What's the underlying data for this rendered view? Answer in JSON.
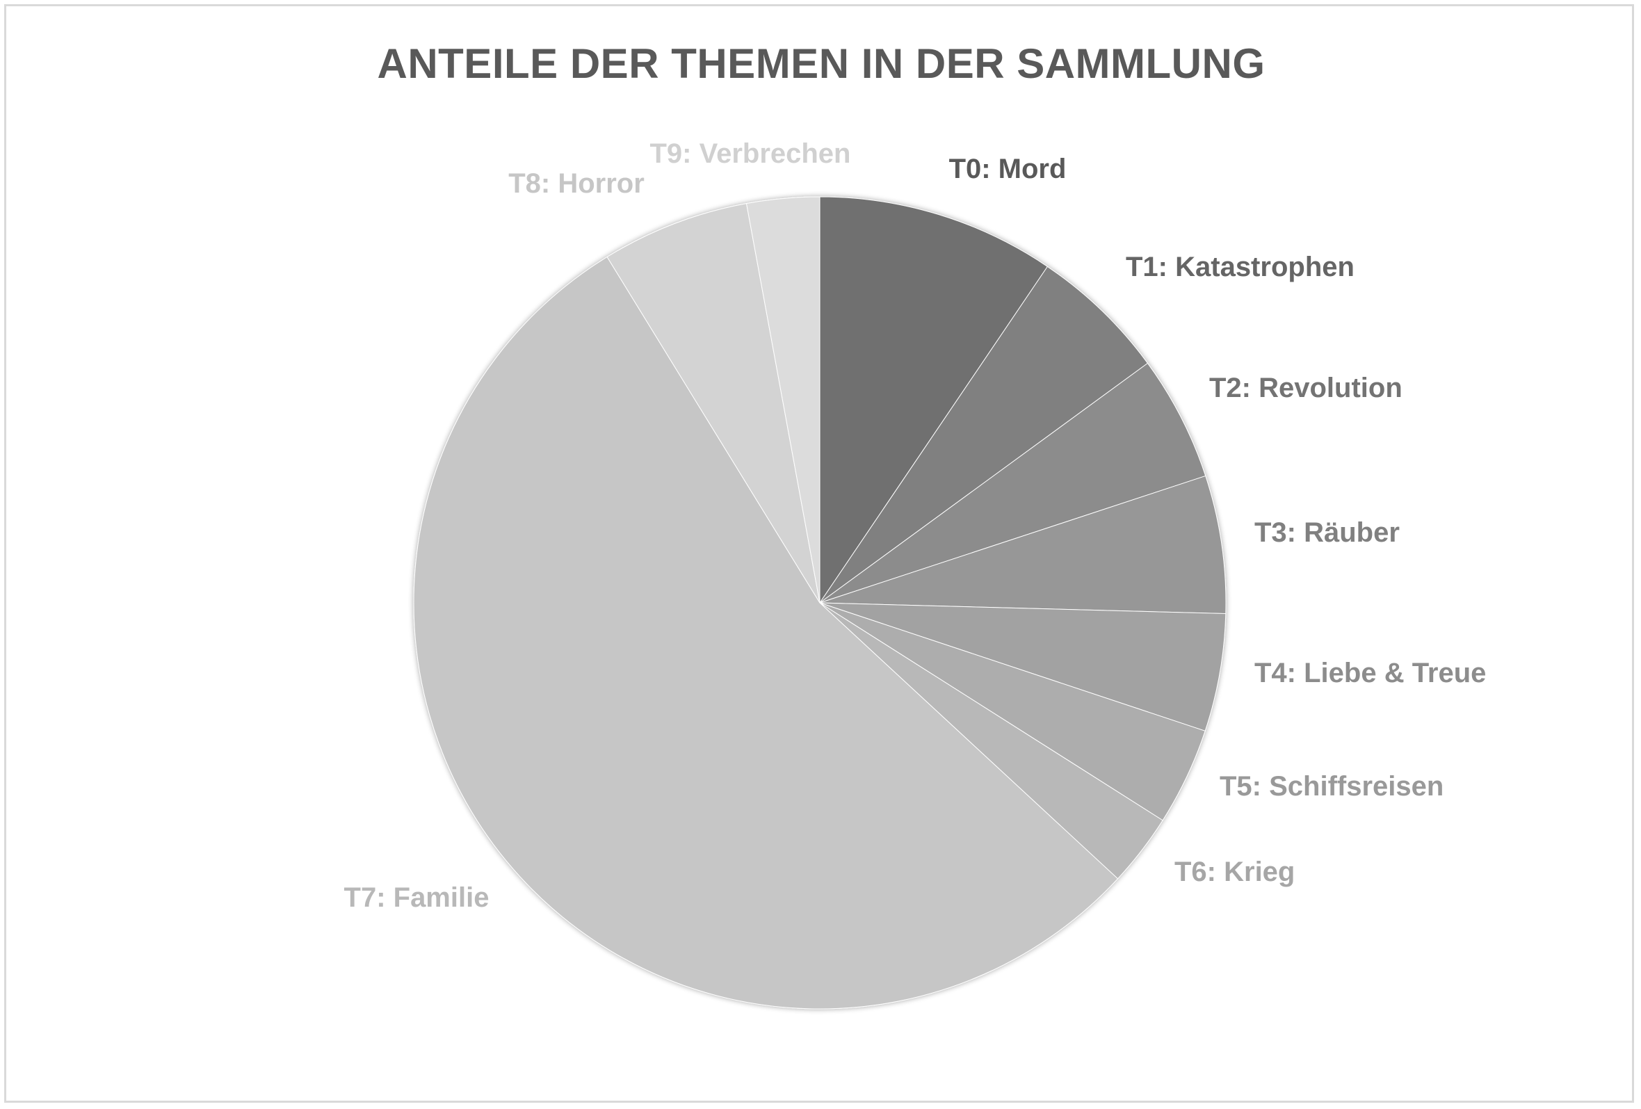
{
  "chart_data": {
    "type": "pie",
    "title": "ANTEILE DER THEMEN IN DER SAMMLUNG",
    "categories": [
      "T0: Mord",
      "T1: Katastrophen",
      "T2: Revolution",
      "T3: Räuber",
      "T4: Liebe & Treue",
      "T5: Schiffsreisen",
      "T6: Krieg",
      "T7: Familie",
      "T8: Horror",
      "T9: Verbrechen"
    ],
    "values": [
      9.5,
      5.5,
      5.0,
      5.5,
      4.7,
      3.9,
      2.9,
      54.5,
      5.9,
      2.9
    ],
    "colors": [
      "#6f6f6f",
      "#808080",
      "#8c8c8c",
      "#979797",
      "#a2a2a2",
      "#adadad",
      "#b8b8b8",
      "#c6c6c6",
      "#d3d3d3",
      "#dcdcdc"
    ],
    "label_colors": [
      "#595959",
      "#656565",
      "#737373",
      "#808080",
      "#8c8c8c",
      "#999999",
      "#a6a6a6",
      "#b8b8b8",
      "#c6c6c6",
      "#d0d0d0"
    ],
    "legend": "none",
    "labels": "category-name-outside"
  }
}
